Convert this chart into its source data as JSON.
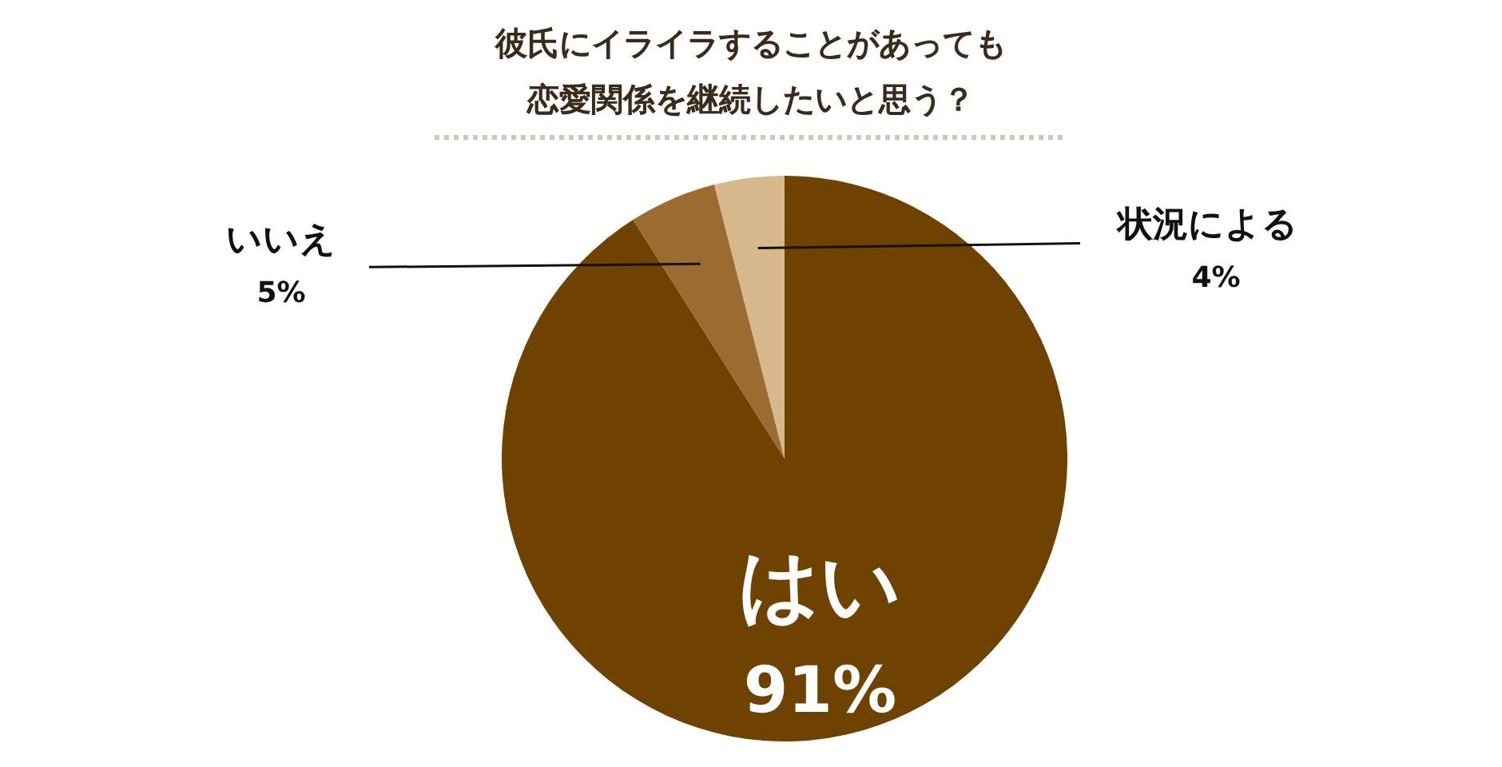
{
  "chart_data": {
    "type": "pie",
    "title": "彼氏にイライラすることがあっても恋愛関係を継続したいと思う？",
    "categories": [
      "はい",
      "いいえ",
      "状況による"
    ],
    "values": [
      91,
      5,
      4
    ],
    "value_labels": [
      "91%",
      "5%",
      "4%"
    ],
    "colors": [
      "#6f4200",
      "#9c6b32",
      "#d6b88c"
    ]
  }
}
